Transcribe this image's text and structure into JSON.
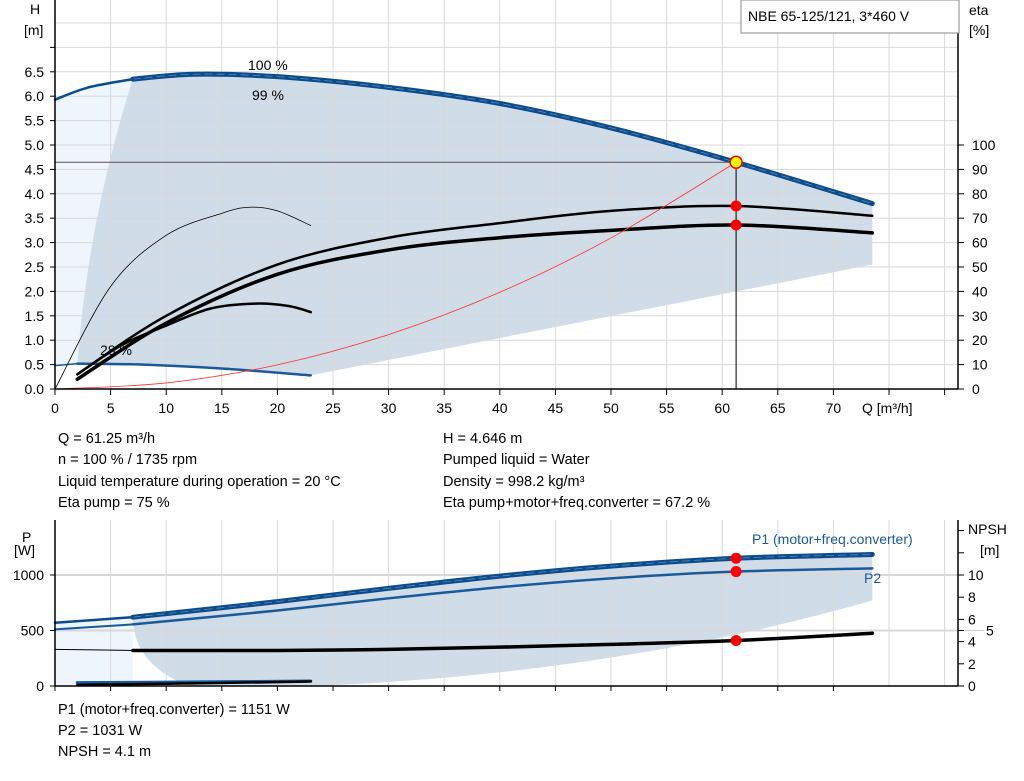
{
  "chart_data": [
    {
      "type": "line",
      "title": "NBE 65-125/121, 3*460 V",
      "xlabel": "Q [m³/h]",
      "ylabel_left": {
        "name": "H",
        "unit": "[m]"
      },
      "ylabel_right": {
        "name": "eta",
        "unit": "[%]"
      },
      "xlim": [
        0,
        80
      ],
      "ylim_left": [
        0,
        8
      ],
      "ylim_right": [
        0,
        100
      ],
      "x_ticks": [
        "0",
        "5",
        "10",
        "15",
        "20",
        "25",
        "30",
        "35",
        "40",
        "45",
        "50",
        "55",
        "60",
        "65",
        "70"
      ],
      "y_ticks_left": [
        "0.0",
        "0.5",
        "1.0",
        "1.5",
        "2.0",
        "2.5",
        "3.0",
        "3.5",
        "4.0",
        "4.5",
        "5.0",
        "5.5",
        "6.0",
        "6.5"
      ],
      "y_ticks_right": [
        "0",
        "10",
        "20",
        "30",
        "40",
        "50",
        "60",
        "70",
        "80",
        "90",
        "100"
      ],
      "grid": true,
      "curve_labels": [
        "100 %",
        "99 %",
        "28 %"
      ],
      "series": [
        {
          "key": "h_max",
          "axis": "left",
          "color": "#0b4c8c",
          "x": [
            7,
            12.5,
            20,
            30,
            40,
            50,
            61.25,
            73.5
          ],
          "y": [
            6.35,
            6.45,
            6.4,
            6.18,
            5.85,
            5.35,
            4.646,
            3.8
          ]
        },
        {
          "key": "h_max_ext",
          "axis": "left",
          "color": "#0b4c8c",
          "x": [
            0,
            3,
            7
          ],
          "y": [
            5.93,
            6.18,
            6.35
          ]
        },
        {
          "key": "h_min",
          "axis": "left",
          "color": "#1a5a9a",
          "x": [
            2,
            8,
            15,
            23
          ],
          "y": [
            0.52,
            0.5,
            0.42,
            0.28
          ]
        },
        {
          "key": "h_min_ext",
          "axis": "left",
          "color": "#1a5a9a",
          "x": [
            0,
            2
          ],
          "y": [
            0.48,
            0.52
          ]
        },
        {
          "key": "eta_pump",
          "axis": "right",
          "color": "#000000",
          "x": [
            2,
            10,
            20,
            30,
            40,
            50,
            61.25,
            73.5
          ],
          "y": [
            6,
            30,
            51,
            62,
            68,
            73,
            75,
            71
          ]
        },
        {
          "key": "eta_total",
          "axis": "right",
          "color": "#000000",
          "x": [
            2,
            10,
            20,
            30,
            40,
            50,
            61.25,
            73.5
          ],
          "y": [
            4,
            27,
            47,
            57,
            62,
            65,
            67.2,
            64
          ]
        },
        {
          "key": "eta_pump_min",
          "axis": "right",
          "color": "#000000",
          "x": [
            0,
            5,
            10,
            15,
            17.5,
            20,
            23
          ],
          "y": [
            0,
            42,
            63,
            72,
            74.5,
            73,
            67
          ]
        },
        {
          "key": "eta_total_min",
          "axis": "right",
          "color": "#000000",
          "x": [
            2,
            6,
            10,
            14,
            18,
            21,
            23
          ],
          "y": [
            6,
            18,
            26,
            33,
            35,
            34,
            31.5
          ]
        },
        {
          "key": "system_curve",
          "axis": "left",
          "color": "#ff3030",
          "x": [
            0,
            10,
            20,
            30,
            40,
            50,
            61.25
          ],
          "y": [
            0,
            0.124,
            0.495,
            1.115,
            1.982,
            3.096,
            4.646
          ]
        }
      ],
      "operating_point": {
        "Q": 61.25,
        "H": 4.646,
        "eta_pump": 75,
        "eta_total": 67.2
      }
    },
    {
      "type": "line",
      "ylabel_left": {
        "name": "P",
        "unit": "[W]"
      },
      "ylabel_right": {
        "name": "NPSH",
        "unit": "[m]"
      },
      "xlim": [
        0,
        80
      ],
      "ylim_left": [
        0,
        1500
      ],
      "ylim_right": [
        0,
        15
      ],
      "y_ticks_left": [
        "0",
        "500",
        "1000"
      ],
      "y_ticks_right": [
        "0",
        "2",
        "4",
        "5",
        "6",
        "8",
        "10"
      ],
      "grid": true,
      "series": [
        {
          "key": "p1",
          "name": "P1 (motor+freq.converter)",
          "axis": "left",
          "color": "#0b4c8c",
          "x": [
            7,
            20,
            30,
            40,
            50,
            61.25,
            73.5
          ],
          "y": [
            620,
            760,
            880,
            990,
            1080,
            1151,
            1185
          ]
        },
        {
          "key": "p1_ext",
          "axis": "left",
          "color": "#0b4c8c",
          "x": [
            0,
            7
          ],
          "y": [
            570,
            620
          ]
        },
        {
          "key": "p2",
          "name": "P2",
          "axis": "left",
          "color": "#1a5a9a",
          "x": [
            7,
            20,
            30,
            40,
            50,
            61.25,
            73.5
          ],
          "y": [
            555,
            680,
            790,
            890,
            970,
            1031,
            1060
          ]
        },
        {
          "key": "p2_ext",
          "axis": "left",
          "color": "#1a5a9a",
          "x": [
            0,
            7
          ],
          "y": [
            510,
            555
          ]
        },
        {
          "key": "npsh",
          "axis": "right",
          "color": "#000000",
          "x": [
            7,
            20,
            30,
            40,
            50,
            61.25,
            73.5
          ],
          "y": [
            3.2,
            3.2,
            3.3,
            3.5,
            3.75,
            4.1,
            4.75
          ]
        },
        {
          "key": "npsh_ext",
          "axis": "right",
          "color": "#000000",
          "x": [
            0,
            7
          ],
          "y": [
            3.3,
            3.2
          ]
        },
        {
          "key": "p_min",
          "axis": "left",
          "color": "#1a5a9a",
          "x": [
            2,
            10,
            23
          ],
          "y": [
            30,
            35,
            45
          ]
        },
        {
          "key": "npsh_min",
          "axis": "right",
          "color": "#000000",
          "x": [
            2,
            10,
            23
          ],
          "y": [
            0.1,
            0.2,
            0.4
          ]
        }
      ],
      "operating_point": {
        "Q": 61.25,
        "P1": 1151,
        "P2": 1031,
        "NPSH": 4.1
      }
    }
  ],
  "info": {
    "left": [
      "Q = 61.25 m³/h",
      "n = 100 % / 1735 rpm",
      "Liquid temperature during operation = 20 °C",
      "Eta pump = 75 %"
    ],
    "right": [
      "H = 4.646 m",
      "Pumped liquid = Water",
      "Density = 998.2 kg/m³",
      "Eta pump+motor+freq.converter = 67.2 %"
    ],
    "bottom": [
      "P1 (motor+freq.converter) = 1151 W",
      "P2 = 1031 W",
      "NPSH = 4.1 m"
    ]
  },
  "colors": {
    "curve_blue": "#0b4c8c",
    "area": "#d0dce8",
    "area_light": "#eef5fc",
    "marker": "#ff0000",
    "op_point": "#ffff00"
  }
}
